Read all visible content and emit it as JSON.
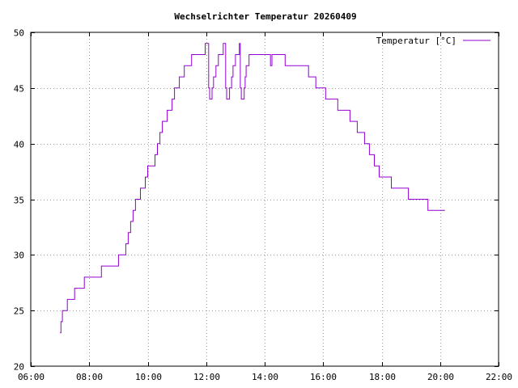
{
  "chart_data": {
    "type": "line",
    "title": "Wechselrichter Temperatur 20260409",
    "xlabel": "",
    "ylabel": "",
    "xlim": [
      "06:00",
      "22:00"
    ],
    "ylim": [
      20,
      50
    ],
    "x_ticks": [
      "06:00",
      "08:00",
      "10:00",
      "12:00",
      "14:00",
      "16:00",
      "18:00",
      "20:00",
      "22:00"
    ],
    "y_ticks": [
      "20",
      "25",
      "30",
      "35",
      "40",
      "45",
      "50"
    ],
    "grid": true,
    "legend_position": "top-right",
    "series": [
      {
        "name": "Temperatur [°C]",
        "color": "#9400d3",
        "points": [
          [
            "07:00",
            23
          ],
          [
            "07:02",
            24
          ],
          [
            "07:05",
            25
          ],
          [
            "07:15",
            26
          ],
          [
            "07:30",
            27
          ],
          [
            "07:50",
            28
          ],
          [
            "08:25",
            29
          ],
          [
            "09:00",
            30
          ],
          [
            "09:15",
            31
          ],
          [
            "09:20",
            32
          ],
          [
            "09:25",
            33
          ],
          [
            "09:30",
            34
          ],
          [
            "09:35",
            35
          ],
          [
            "09:45",
            36
          ],
          [
            "09:55",
            37
          ],
          [
            "10:00",
            38
          ],
          [
            "10:15",
            39
          ],
          [
            "10:20",
            40
          ],
          [
            "10:25",
            41
          ],
          [
            "10:30",
            42
          ],
          [
            "10:40",
            43
          ],
          [
            "10:50",
            44
          ],
          [
            "10:55",
            45
          ],
          [
            "11:05",
            46
          ],
          [
            "11:15",
            47
          ],
          [
            "11:30",
            48
          ],
          [
            "11:58",
            49
          ],
          [
            "12:03",
            49
          ],
          [
            "12:05",
            45
          ],
          [
            "12:07",
            44
          ],
          [
            "12:12",
            45
          ],
          [
            "12:15",
            46
          ],
          [
            "12:20",
            47
          ],
          [
            "12:25",
            48
          ],
          [
            "12:35",
            49
          ],
          [
            "12:38",
            49
          ],
          [
            "12:40",
            45
          ],
          [
            "12:42",
            44
          ],
          [
            "12:48",
            45
          ],
          [
            "12:52",
            46
          ],
          [
            "12:55",
            47
          ],
          [
            "13:00",
            48
          ],
          [
            "13:08",
            49
          ],
          [
            "13:10",
            45
          ],
          [
            "13:12",
            44
          ],
          [
            "13:18",
            45
          ],
          [
            "13:20",
            46
          ],
          [
            "13:22",
            47
          ],
          [
            "13:28",
            48
          ],
          [
            "14:10",
            48
          ],
          [
            "14:12",
            47
          ],
          [
            "14:15",
            48
          ],
          [
            "14:40",
            48
          ],
          [
            "14:42",
            47
          ],
          [
            "15:30",
            46
          ],
          [
            "15:45",
            45
          ],
          [
            "16:05",
            44
          ],
          [
            "16:30",
            43
          ],
          [
            "16:55",
            42
          ],
          [
            "17:10",
            41
          ],
          [
            "17:25",
            40
          ],
          [
            "17:35",
            39
          ],
          [
            "17:45",
            38
          ],
          [
            "17:55",
            37
          ],
          [
            "18:20",
            36
          ],
          [
            "18:55",
            35
          ],
          [
            "19:35",
            34
          ],
          [
            "20:10",
            34
          ]
        ]
      }
    ]
  }
}
